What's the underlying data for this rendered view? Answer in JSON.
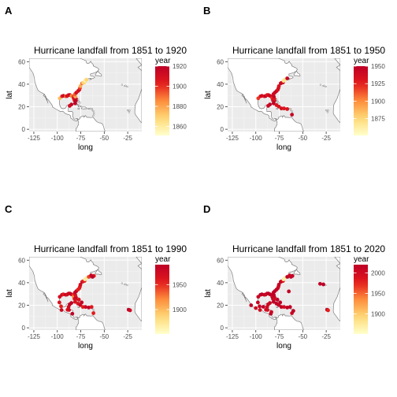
{
  "colors": {
    "panel_bg": "#ebebeb",
    "grid_major": "#ffffff",
    "coast": "#7f7f7f",
    "land": "#ffffff",
    "scale_low": "#ffffcc",
    "scale_mid": "#fd8d3c",
    "scale_high": "#bd0026"
  },
  "icons": {
    "map_layer": "coastline-outline",
    "points": "filled-circle"
  },
  "chart_data": [
    {
      "panel": "A",
      "type": "scatter",
      "title": "Hurricane landfall from 1851 to  1920",
      "xlabel": "long",
      "ylabel": "lat",
      "xlim": [
        -130,
        -10
      ],
      "ylim": [
        -2,
        63
      ],
      "x_ticks": [
        "-125",
        "-100",
        "-75",
        "-50",
        "-25"
      ],
      "y_ticks": [
        "0",
        "20",
        "40",
        "60"
      ],
      "grid": true,
      "legend": {
        "title": "year",
        "position": "right",
        "min": 1851,
        "max": 1920,
        "ticks": [
          "1860",
          "1880",
          "1900",
          "1920"
        ]
      },
      "points": [
        {
          "x": -97.4,
          "y": 27.5,
          "year": 1875
        },
        {
          "x": -95.0,
          "y": 29.3,
          "year": 1900
        },
        {
          "x": -93.5,
          "y": 29.7,
          "year": 1915
        },
        {
          "x": -91.0,
          "y": 29.3,
          "year": 1893
        },
        {
          "x": -89.6,
          "y": 29.5,
          "year": 1909
        },
        {
          "x": -88.0,
          "y": 30.4,
          "year": 1906
        },
        {
          "x": -86.5,
          "y": 30.4,
          "year": 1917
        },
        {
          "x": -84.9,
          "y": 29.7,
          "year": 1886
        },
        {
          "x": -83.0,
          "y": 29.1,
          "year": 1896
        },
        {
          "x": -82.5,
          "y": 27.5,
          "year": 1910
        },
        {
          "x": -81.7,
          "y": 25.7,
          "year": 1906
        },
        {
          "x": -80.3,
          "y": 25.5,
          "year": 1919
        },
        {
          "x": -80.2,
          "y": 27.0,
          "year": 1915
        },
        {
          "x": -80.8,
          "y": 29.0,
          "year": 1880
        },
        {
          "x": -81.2,
          "y": 31.2,
          "year": 1893
        },
        {
          "x": -79.8,
          "y": 32.5,
          "year": 1911
        },
        {
          "x": -78.0,
          "y": 33.9,
          "year": 1906
        },
        {
          "x": -76.6,
          "y": 35.0,
          "year": 1913
        },
        {
          "x": -75.9,
          "y": 36.5,
          "year": 1899
        },
        {
          "x": -75.4,
          "y": 38.3,
          "year": 1878
        },
        {
          "x": -73.5,
          "y": 40.8,
          "year": 1893
        },
        {
          "x": -72.5,
          "y": 41.2,
          "year": 1869
        },
        {
          "x": -71.0,
          "y": 41.6,
          "year": 1869
        },
        {
          "x": -70.5,
          "y": 43.0,
          "year": 1858
        },
        {
          "x": -69.0,
          "y": 44.0,
          "year": 1869
        },
        {
          "x": -81.0,
          "y": 23.0,
          "year": 1919
        },
        {
          "x": -85.0,
          "y": 22.0,
          "year": 1917
        },
        {
          "x": -86.8,
          "y": 20.8,
          "year": 1913
        }
      ]
    },
    {
      "panel": "B",
      "type": "scatter",
      "title": "Hurricane landfall from 1851 to  1950",
      "xlabel": "long",
      "ylabel": "lat",
      "xlim": [
        -130,
        -10
      ],
      "ylim": [
        -2,
        63
      ],
      "x_ticks": [
        "-125",
        "-100",
        "-75",
        "-50",
        "-25"
      ],
      "y_ticks": [
        "0",
        "20",
        "40",
        "60"
      ],
      "grid": true,
      "legend": {
        "title": "year",
        "position": "right",
        "min": 1851,
        "max": 1950,
        "ticks": [
          "1875",
          "1900",
          "1925",
          "1950"
        ]
      },
      "points": [
        {
          "x": -97.4,
          "y": 27.5,
          "year": 1919
        },
        {
          "x": -95.0,
          "y": 29.3,
          "year": 1932
        },
        {
          "x": -93.5,
          "y": 29.7,
          "year": 1940
        },
        {
          "x": -91.0,
          "y": 29.3,
          "year": 1926
        },
        {
          "x": -89.6,
          "y": 29.5,
          "year": 1947
        },
        {
          "x": -88.0,
          "y": 30.4,
          "year": 1926
        },
        {
          "x": -86.5,
          "y": 30.4,
          "year": 1936
        },
        {
          "x": -84.9,
          "y": 29.7,
          "year": 1941
        },
        {
          "x": -83.0,
          "y": 29.1,
          "year": 1935
        },
        {
          "x": -82.5,
          "y": 27.5,
          "year": 1921
        },
        {
          "x": -81.7,
          "y": 25.7,
          "year": 1935
        },
        {
          "x": -80.3,
          "y": 25.5,
          "year": 1945
        },
        {
          "x": -80.2,
          "y": 27.0,
          "year": 1928
        },
        {
          "x": -80.8,
          "y": 29.0,
          "year": 1944
        },
        {
          "x": -81.2,
          "y": 31.2,
          "year": 1940
        },
        {
          "x": -79.8,
          "y": 32.5,
          "year": 1940
        },
        {
          "x": -78.0,
          "y": 33.9,
          "year": 1944
        },
        {
          "x": -76.6,
          "y": 35.0,
          "year": 1933
        },
        {
          "x": -75.9,
          "y": 36.5,
          "year": 1936
        },
        {
          "x": -75.4,
          "y": 38.3,
          "year": 1933
        },
        {
          "x": -73.5,
          "y": 40.8,
          "year": 1938
        },
        {
          "x": -72.5,
          "y": 41.2,
          "year": 1944
        },
        {
          "x": -71.0,
          "y": 41.6,
          "year": 1938
        },
        {
          "x": -70.5,
          "y": 43.0,
          "year": 1869
        },
        {
          "x": -69.0,
          "y": 44.0,
          "year": 1869
        },
        {
          "x": -66.5,
          "y": 45.2,
          "year": 1944
        },
        {
          "x": -81.0,
          "y": 23.0,
          "year": 1948
        },
        {
          "x": -78.0,
          "y": 21.5,
          "year": 1932
        },
        {
          "x": -75.5,
          "y": 20.2,
          "year": 1932
        },
        {
          "x": -72.8,
          "y": 18.5,
          "year": 1935
        },
        {
          "x": -69.9,
          "y": 18.5,
          "year": 1930
        },
        {
          "x": -66.5,
          "y": 18.0,
          "year": 1932
        },
        {
          "x": -61.5,
          "y": 13.0,
          "year": 1944
        },
        {
          "x": -85.0,
          "y": 22.0,
          "year": 1948
        },
        {
          "x": -86.8,
          "y": 20.8,
          "year": 1942
        }
      ]
    },
    {
      "panel": "C",
      "type": "scatter",
      "title": "Hurricane landfall from 1851 to  1990",
      "xlabel": "long",
      "ylabel": "lat",
      "xlim": [
        -130,
        -10
      ],
      "ylim": [
        -2,
        63
      ],
      "x_ticks": [
        "-125",
        "-100",
        "-75",
        "-50",
        "-25"
      ],
      "y_ticks": [
        "0",
        "20",
        "40",
        "60"
      ],
      "grid": true,
      "legend": {
        "title": "year",
        "position": "right",
        "min": 1851,
        "max": 1990,
        "ticks": [
          "1900",
          "1950"
        ]
      },
      "points": [
        {
          "x": -97.4,
          "y": 27.5,
          "year": 1970
        },
        {
          "x": -95.0,
          "y": 29.3,
          "year": 1983
        },
        {
          "x": -93.5,
          "y": 29.7,
          "year": 1957
        },
        {
          "x": -91.0,
          "y": 29.3,
          "year": 1985
        },
        {
          "x": -89.6,
          "y": 29.5,
          "year": 1969
        },
        {
          "x": -88.0,
          "y": 30.4,
          "year": 1979
        },
        {
          "x": -86.5,
          "y": 30.4,
          "year": 1975
        },
        {
          "x": -84.9,
          "y": 29.7,
          "year": 1985
        },
        {
          "x": -83.0,
          "y": 29.1,
          "year": 1950
        },
        {
          "x": -82.5,
          "y": 27.5,
          "year": 1921
        },
        {
          "x": -81.7,
          "y": 25.7,
          "year": 1960
        },
        {
          "x": -80.3,
          "y": 25.5,
          "year": 1965
        },
        {
          "x": -80.2,
          "y": 27.0,
          "year": 1979
        },
        {
          "x": -80.8,
          "y": 29.0,
          "year": 1964
        },
        {
          "x": -81.2,
          "y": 31.2,
          "year": 1979
        },
        {
          "x": -79.8,
          "y": 32.5,
          "year": 1989
        },
        {
          "x": -78.0,
          "y": 33.9,
          "year": 1954
        },
        {
          "x": -76.6,
          "y": 35.0,
          "year": 1955
        },
        {
          "x": -75.9,
          "y": 36.5,
          "year": 1960
        },
        {
          "x": -75.4,
          "y": 38.3,
          "year": 1972
        },
        {
          "x": -73.5,
          "y": 40.8,
          "year": 1985
        },
        {
          "x": -72.5,
          "y": 41.2,
          "year": 1954
        },
        {
          "x": -71.0,
          "y": 41.6,
          "year": 1954
        },
        {
          "x": -70.5,
          "y": 43.0,
          "year": 1869
        },
        {
          "x": -69.0,
          "y": 44.0,
          "year": 1869
        },
        {
          "x": -66.5,
          "y": 45.2,
          "year": 1944
        },
        {
          "x": -64.0,
          "y": 46.5,
          "year": 1980
        },
        {
          "x": -61.0,
          "y": 46.0,
          "year": 1955
        },
        {
          "x": -62.5,
          "y": 45.2,
          "year": 1990
        },
        {
          "x": -81.0,
          "y": 23.0,
          "year": 1966
        },
        {
          "x": -78.0,
          "y": 21.5,
          "year": 1963
        },
        {
          "x": -75.5,
          "y": 20.2,
          "year": 1980
        },
        {
          "x": -72.8,
          "y": 18.5,
          "year": 1954
        },
        {
          "x": -69.9,
          "y": 18.5,
          "year": 1979
        },
        {
          "x": -66.5,
          "y": 18.0,
          "year": 1989
        },
        {
          "x": -61.5,
          "y": 13.0,
          "year": 1955
        },
        {
          "x": -85.0,
          "y": 22.0,
          "year": 1988
        },
        {
          "x": -86.8,
          "y": 20.8,
          "year": 1988
        },
        {
          "x": -88.0,
          "y": 18.5,
          "year": 1974
        },
        {
          "x": -89.2,
          "y": 16.0,
          "year": 1961
        },
        {
          "x": -87.5,
          "y": 15.8,
          "year": 1974
        },
        {
          "x": -84.0,
          "y": 12.5,
          "year": 1988
        },
        {
          "x": -96.0,
          "y": 19.0,
          "year": 1955
        },
        {
          "x": -97.8,
          "y": 22.5,
          "year": 1967
        },
        {
          "x": -95.5,
          "y": 15.8,
          "year": 1978
        },
        {
          "x": -77.0,
          "y": 25.0,
          "year": 1965
        },
        {
          "x": -74.0,
          "y": 22.5,
          "year": 1985
        },
        {
          "x": -63.5,
          "y": 18.5,
          "year": 1960
        },
        {
          "x": -24.0,
          "y": 16.0,
          "year": 1984
        },
        {
          "x": -22.5,
          "y": 15.5,
          "year": 1976
        }
      ]
    },
    {
      "panel": "D",
      "type": "scatter",
      "title": "Hurricane landfall from 1851 to  2020",
      "xlabel": "long",
      "ylabel": "lat",
      "xlim": [
        -130,
        -10
      ],
      "ylim": [
        -2,
        63
      ],
      "x_ticks": [
        "-125",
        "-100",
        "-75",
        "-50",
        "-25"
      ],
      "y_ticks": [
        "0",
        "20",
        "40",
        "60"
      ],
      "grid": true,
      "legend": {
        "title": "year",
        "position": "right",
        "min": 1851,
        "max": 2020,
        "ticks": [
          "1900",
          "1950",
          "2000"
        ]
      },
      "points": [
        {
          "x": -97.4,
          "y": 27.5,
          "year": 2008
        },
        {
          "x": -95.0,
          "y": 29.3,
          "year": 2017
        },
        {
          "x": -93.5,
          "y": 29.7,
          "year": 2020
        },
        {
          "x": -91.0,
          "y": 29.3,
          "year": 2012
        },
        {
          "x": -89.6,
          "y": 29.5,
          "year": 2005
        },
        {
          "x": -88.0,
          "y": 30.4,
          "year": 2004
        },
        {
          "x": -86.5,
          "y": 30.4,
          "year": 2018
        },
        {
          "x": -84.9,
          "y": 29.7,
          "year": 2018
        },
        {
          "x": -83.0,
          "y": 29.1,
          "year": 2016
        },
        {
          "x": -82.5,
          "y": 27.5,
          "year": 2004
        },
        {
          "x": -81.7,
          "y": 25.7,
          "year": 2017
        },
        {
          "x": -80.3,
          "y": 25.5,
          "year": 1992
        },
        {
          "x": -80.2,
          "y": 27.0,
          "year": 2004
        },
        {
          "x": -80.8,
          "y": 29.0,
          "year": 2016
        },
        {
          "x": -81.2,
          "y": 31.2,
          "year": 2016
        },
        {
          "x": -79.8,
          "y": 32.5,
          "year": 2019
        },
        {
          "x": -78.0,
          "y": 33.9,
          "year": 2018
        },
        {
          "x": -76.6,
          "y": 35.0,
          "year": 2011
        },
        {
          "x": -75.9,
          "y": 36.5,
          "year": 2003
        },
        {
          "x": -75.4,
          "y": 38.3,
          "year": 2012
        },
        {
          "x": -73.5,
          "y": 40.8,
          "year": 2012
        },
        {
          "x": -72.5,
          "y": 41.2,
          "year": 2011
        },
        {
          "x": -71.0,
          "y": 41.6,
          "year": 1991
        },
        {
          "x": -70.5,
          "y": 43.0,
          "year": 1869
        },
        {
          "x": -69.0,
          "y": 44.0,
          "year": 1869
        },
        {
          "x": -66.5,
          "y": 45.2,
          "year": 2019
        },
        {
          "x": -64.0,
          "y": 46.5,
          "year": 2003
        },
        {
          "x": -61.0,
          "y": 46.0,
          "year": 2019
        },
        {
          "x": -62.5,
          "y": 45.2,
          "year": 2010
        },
        {
          "x": -81.0,
          "y": 23.0,
          "year": 2017
        },
        {
          "x": -78.0,
          "y": 21.5,
          "year": 2016
        },
        {
          "x": -75.5,
          "y": 20.2,
          "year": 2012
        },
        {
          "x": -72.8,
          "y": 18.5,
          "year": 2016
        },
        {
          "x": -69.9,
          "y": 18.5,
          "year": 1998
        },
        {
          "x": -66.5,
          "y": 18.0,
          "year": 2017
        },
        {
          "x": -61.5,
          "y": 13.0,
          "year": 2004
        },
        {
          "x": -85.0,
          "y": 22.0,
          "year": 2008
        },
        {
          "x": -86.8,
          "y": 20.8,
          "year": 2005
        },
        {
          "x": -88.0,
          "y": 18.5,
          "year": 2000
        },
        {
          "x": -89.2,
          "y": 16.0,
          "year": 2001
        },
        {
          "x": -87.5,
          "y": 15.8,
          "year": 1998
        },
        {
          "x": -84.0,
          "y": 12.5,
          "year": 2020
        },
        {
          "x": -83.4,
          "y": 14.0,
          "year": 2007
        },
        {
          "x": -96.0,
          "y": 19.0,
          "year": 2010
        },
        {
          "x": -97.8,
          "y": 22.5,
          "year": 2010
        },
        {
          "x": -95.5,
          "y": 15.8,
          "year": 1997
        },
        {
          "x": -100.0,
          "y": 17.5,
          "year": 2002
        },
        {
          "x": -105.0,
          "y": 20.0,
          "year": 2015
        },
        {
          "x": -92.0,
          "y": 18.6,
          "year": 2020
        },
        {
          "x": -77.0,
          "y": 25.0,
          "year": 2019
        },
        {
          "x": -74.0,
          "y": 22.5,
          "year": 2017
        },
        {
          "x": -63.5,
          "y": 18.5,
          "year": 2017
        },
        {
          "x": -60.0,
          "y": 15.0,
          "year": 2017
        },
        {
          "x": -64.8,
          "y": 32.3,
          "year": 2014
        },
        {
          "x": -31.5,
          "y": 39.0,
          "year": 2019
        },
        {
          "x": -28.0,
          "y": 38.5,
          "year": 2019
        },
        {
          "x": -24.0,
          "y": 16.0,
          "year": 2015
        },
        {
          "x": -23.0,
          "y": 15.5,
          "year": 1976
        }
      ]
    }
  ]
}
